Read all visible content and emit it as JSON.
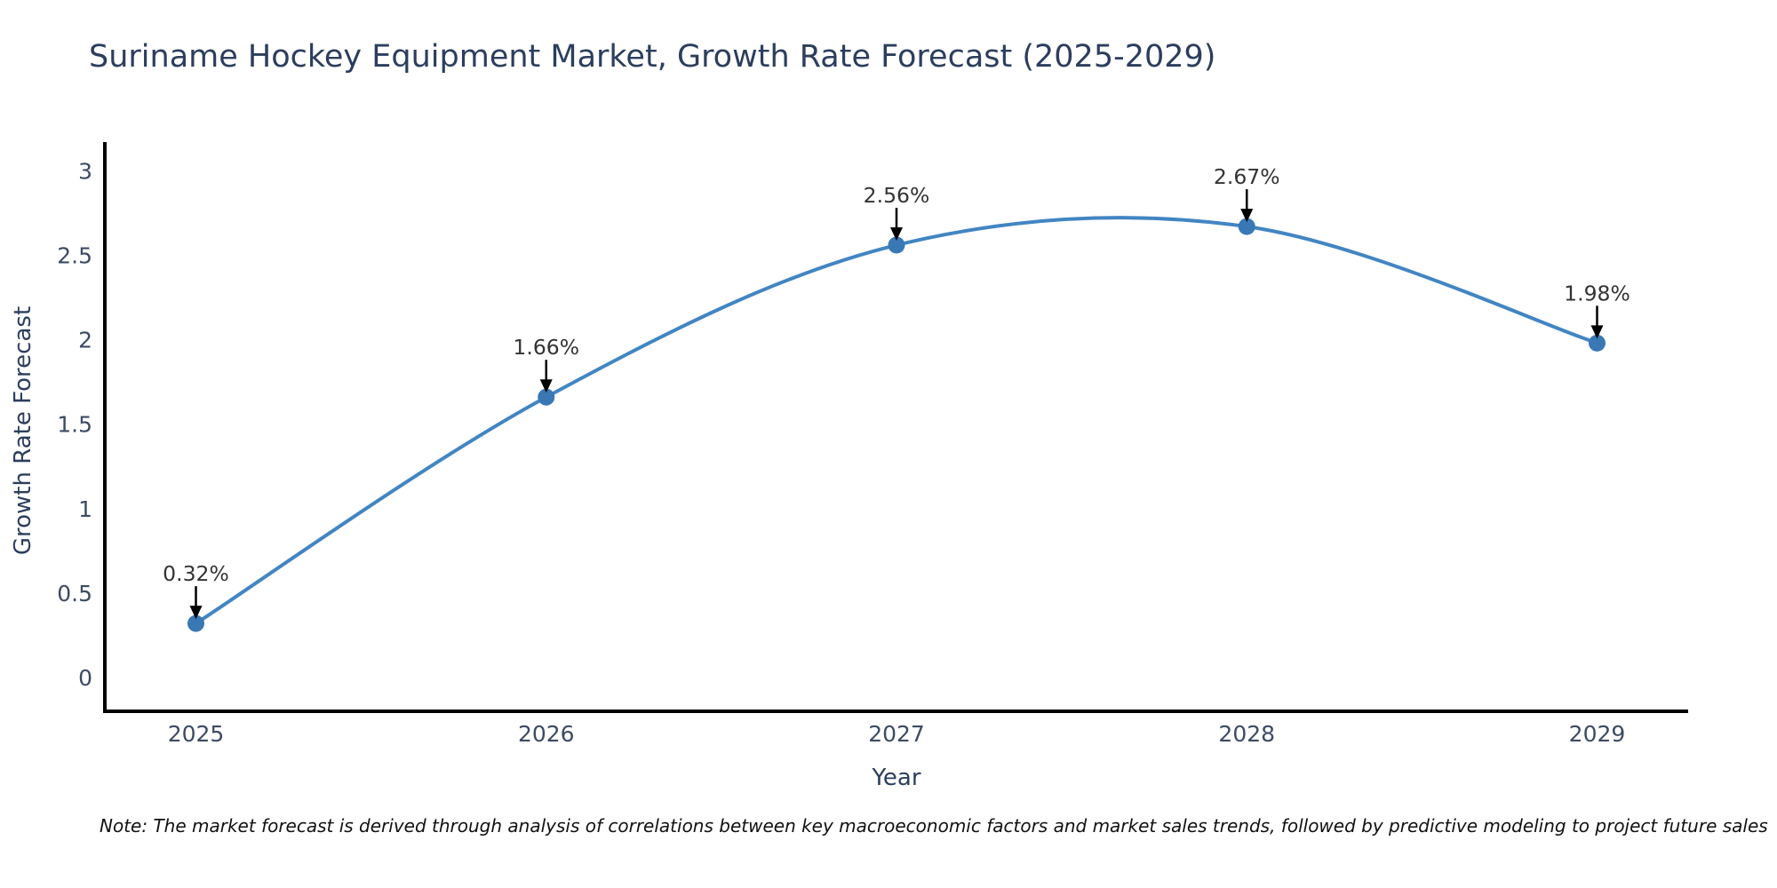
{
  "figure": {
    "note": "Note: The market forecast is derived through analysis of correlations between key macroeconomic factors and market sales trends, followed by predictive modeling to project future sales"
  },
  "chart_data": {
    "type": "line",
    "title": "Suriname Hockey Equipment Market, Growth Rate Forecast (2025-2029)",
    "xlabel": "Year",
    "ylabel": "Growth Rate Forecast",
    "x": [
      2025,
      2026,
      2027,
      2028,
      2029
    ],
    "series": [
      {
        "name": "Growth Rate Forecast",
        "values": [
          0.32,
          1.66,
          2.56,
          2.67,
          1.98
        ],
        "point_labels": [
          "0.32%",
          "1.66%",
          "2.56%",
          "2.67%",
          "1.98%"
        ]
      }
    ],
    "xtick_labels": [
      "2025",
      "2026",
      "2027",
      "2028",
      "2029"
    ],
    "yticks": [
      0,
      0.5,
      1,
      1.5,
      2,
      2.5,
      3
    ],
    "ytick_labels": [
      "0",
      "0.5",
      "1",
      "1.5",
      "2",
      "2.5",
      "3"
    ],
    "xlim": [
      2024.74,
      2029.26
    ],
    "ylim": [
      -0.2,
      3.17
    ],
    "grid": false,
    "legend": "none",
    "line_shape": "spline",
    "annotation_style": "value label with downward black arrow above each data point",
    "colors": {
      "line": "#4285c2",
      "marker": "#3a78b5",
      "annotation_text": "#333333",
      "arrow": "#000000",
      "axis": "#000000",
      "title": "#2c3e5d",
      "axis_title": "#2c3e5d",
      "tick": "#3d4b63",
      "note": "#111111",
      "background": "#ffffff"
    }
  }
}
